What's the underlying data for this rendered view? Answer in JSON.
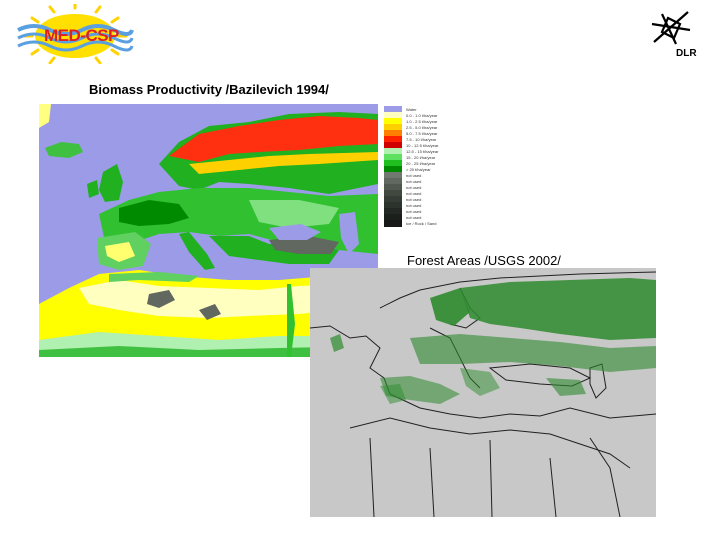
{
  "logo_left": {
    "text": "MED-CSP"
  },
  "logo_right": {
    "text": "DLR"
  },
  "map1": {
    "title": "Biomass Productivity /Bazilevich 1994/",
    "legend": [
      {
        "label": "Water",
        "color": "#9b9be8"
      },
      {
        "label": "0.0 - 1.0 t/ha/year",
        "color": "#ffffc0"
      },
      {
        "label": "1.0 - 2.5 t/ha/year",
        "color": "#ffff00"
      },
      {
        "label": "2.5 - 5.0 t/ha/year",
        "color": "#ffd000"
      },
      {
        "label": "5.0 - 7.5 t/ha/year",
        "color": "#ff8000"
      },
      {
        "label": "7.5 - 10 t/ha/year",
        "color": "#ff2000"
      },
      {
        "label": "10 - 12.5 t/ha/year",
        "color": "#d00000"
      },
      {
        "label": "12.5 - 15 t/ha/year",
        "color": "#b0f0b0"
      },
      {
        "label": "15 - 20 t/ha/year",
        "color": "#60e060"
      },
      {
        "label": "20 - 25 t/ha/year",
        "color": "#20c020"
      },
      {
        "label": "> 25 t/ha/year",
        "color": "#008800"
      },
      {
        "label": "not used",
        "color": "#707870"
      },
      {
        "label": "not used",
        "color": "#606860"
      },
      {
        "label": "not used",
        "color": "#505850"
      },
      {
        "label": "not used",
        "color": "#404840"
      },
      {
        "label": "not used",
        "color": "#353c35"
      },
      {
        "label": "not used",
        "color": "#2c322c"
      },
      {
        "label": "not used",
        "color": "#242824"
      },
      {
        "label": "not used",
        "color": "#1c201c"
      },
      {
        "label": "Ice / Rock / Sand",
        "color": "#181818"
      }
    ]
  },
  "map2": {
    "title": "Forest Areas /USGS 2002/"
  }
}
